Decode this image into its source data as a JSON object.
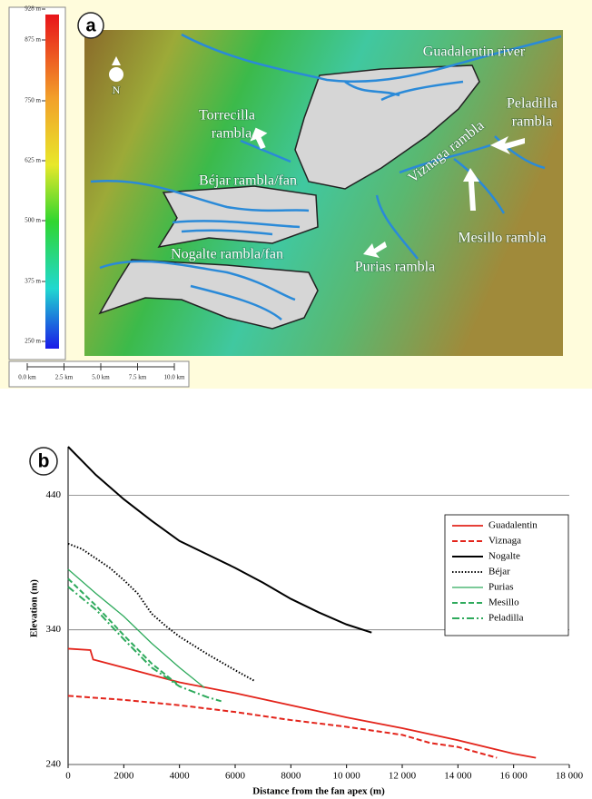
{
  "map": {
    "panel_label": "a",
    "north": "N",
    "colorbar_labels": [
      "928 m",
      "875 m",
      "750 m",
      "625 m",
      "500 m",
      "375 m",
      "250 m"
    ],
    "scale_labels": [
      "0.0 km",
      "2.5 km",
      "5.0 km",
      "7.5 km",
      "10.0 km"
    ],
    "labels": [
      "Guadalentin river",
      "Torrecilla",
      "rambla",
      "Peladilla",
      "rambla",
      "Viznaga rambla",
      "Béjar rambla/fan",
      "Nogalte rambla/fan",
      "Mesillo rambla",
      "Purias rambla"
    ]
  },
  "chart_data": {
    "type": "line",
    "panel_label": "b",
    "x_label": "Distance from the fan apex (m)",
    "y_label": "Elevation (m)",
    "xlim": [
      0,
      18000
    ],
    "ylim": [
      240,
      476
    ],
    "xticks": [
      0,
      2000,
      4000,
      6000,
      8000,
      {
        "value": 10000,
        "label": "10 000"
      },
      {
        "value": 12000,
        "label": "12 000"
      },
      {
        "value": 14000,
        "label": "14 000"
      },
      {
        "value": 16000,
        "label": "16 000"
      },
      {
        "value": 18000,
        "label": "18 000"
      }
    ],
    "yticks": [
      240,
      340,
      440
    ],
    "grid": true,
    "legend": "right",
    "series": [
      {
        "name": "Guadalentin",
        "color": "#e3241b",
        "linestyle": "solid",
        "x": [
          0,
          800,
          900,
          2000,
          4000,
          6000,
          8000,
          10000,
          12000,
          14000,
          16000,
          16800
        ],
        "values": [
          326,
          325,
          318,
          312,
          301,
          293,
          284,
          275,
          267,
          258,
          248,
          245
        ]
      },
      {
        "name": "Viznaga",
        "color": "#e3241b",
        "linestyle": "dashed",
        "x": [
          0,
          2000,
          4000,
          6000,
          8000,
          10000,
          12000,
          13000,
          14000,
          15400
        ],
        "values": [
          291,
          288,
          284,
          279,
          273,
          268,
          262,
          256,
          253,
          245
        ]
      },
      {
        "name": "Nogalte",
        "color": "#000000",
        "linestyle": "solid",
        "x": [
          0,
          1000,
          2000,
          3000,
          4000,
          5000,
          6000,
          7000,
          8000,
          9000,
          10000,
          10900
        ],
        "values": [
          476,
          455,
          437,
          421,
          406,
          396,
          386,
          375,
          363,
          353,
          344,
          338
        ]
      },
      {
        "name": "Béjar",
        "color": "#000000",
        "linestyle": "dotted",
        "x": [
          0,
          500,
          1000,
          1500,
          2000,
          2500,
          3000,
          3500,
          4000,
          5000,
          6000,
          6700
        ],
        "values": [
          404,
          400,
          393,
          386,
          377,
          367,
          352,
          343,
          335,
          322,
          310,
          302
        ]
      },
      {
        "name": "Purias",
        "color": "#2eaa5c",
        "linestyle": "solid",
        "x": [
          0,
          1000,
          2000,
          3000,
          4000,
          4900
        ],
        "values": [
          385,
          367,
          350,
          330,
          312,
          297
        ]
      },
      {
        "name": "Mesillo",
        "color": "#2eaa5c",
        "linestyle": "dashed",
        "x": [
          0,
          1000,
          2000,
          3000,
          3900
        ],
        "values": [
          378,
          358,
          336,
          315,
          300
        ]
      },
      {
        "name": "Peladilla",
        "color": "#2eaa5c",
        "linestyle": "dashdot",
        "x": [
          0,
          1000,
          2000,
          3000,
          4000,
          5000,
          5500
        ],
        "values": [
          372,
          355,
          333,
          312,
          298,
          290,
          287
        ]
      }
    ]
  }
}
